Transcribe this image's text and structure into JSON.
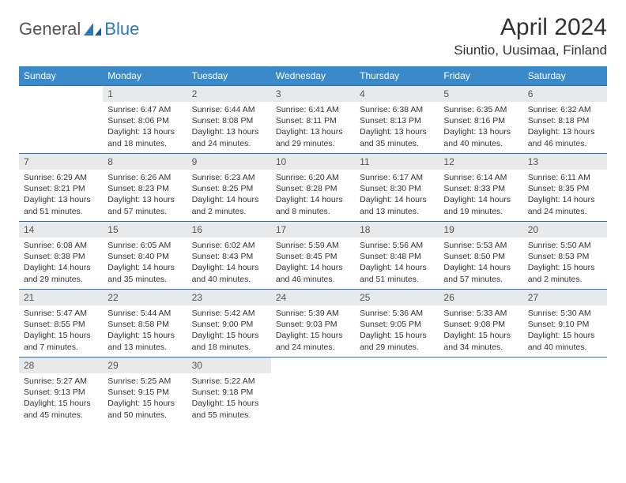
{
  "logo": {
    "text_general": "General",
    "text_blue": "Blue"
  },
  "title": "April 2024",
  "location": "Siuntio, Uusimaa, Finland",
  "colors": {
    "header_bg": "#3a8ac9",
    "header_fg": "#ffffff",
    "daynum_bg": "#e8e9ea",
    "border": "#2f6fa8",
    "logo_blue": "#2f77bb",
    "text": "#333333"
  },
  "weekdays": [
    "Sunday",
    "Monday",
    "Tuesday",
    "Wednesday",
    "Thursday",
    "Friday",
    "Saturday"
  ],
  "weeks": [
    [
      {
        "num": "",
        "sunrise": "",
        "sunset": "",
        "daylight": ""
      },
      {
        "num": "1",
        "sunrise": "Sunrise: 6:47 AM",
        "sunset": "Sunset: 8:06 PM",
        "daylight": "Daylight: 13 hours and 18 minutes."
      },
      {
        "num": "2",
        "sunrise": "Sunrise: 6:44 AM",
        "sunset": "Sunset: 8:08 PM",
        "daylight": "Daylight: 13 hours and 24 minutes."
      },
      {
        "num": "3",
        "sunrise": "Sunrise: 6:41 AM",
        "sunset": "Sunset: 8:11 PM",
        "daylight": "Daylight: 13 hours and 29 minutes."
      },
      {
        "num": "4",
        "sunrise": "Sunrise: 6:38 AM",
        "sunset": "Sunset: 8:13 PM",
        "daylight": "Daylight: 13 hours and 35 minutes."
      },
      {
        "num": "5",
        "sunrise": "Sunrise: 6:35 AM",
        "sunset": "Sunset: 8:16 PM",
        "daylight": "Daylight: 13 hours and 40 minutes."
      },
      {
        "num": "6",
        "sunrise": "Sunrise: 6:32 AM",
        "sunset": "Sunset: 8:18 PM",
        "daylight": "Daylight: 13 hours and 46 minutes."
      }
    ],
    [
      {
        "num": "7",
        "sunrise": "Sunrise: 6:29 AM",
        "sunset": "Sunset: 8:21 PM",
        "daylight": "Daylight: 13 hours and 51 minutes."
      },
      {
        "num": "8",
        "sunrise": "Sunrise: 6:26 AM",
        "sunset": "Sunset: 8:23 PM",
        "daylight": "Daylight: 13 hours and 57 minutes."
      },
      {
        "num": "9",
        "sunrise": "Sunrise: 6:23 AM",
        "sunset": "Sunset: 8:25 PM",
        "daylight": "Daylight: 14 hours and 2 minutes."
      },
      {
        "num": "10",
        "sunrise": "Sunrise: 6:20 AM",
        "sunset": "Sunset: 8:28 PM",
        "daylight": "Daylight: 14 hours and 8 minutes."
      },
      {
        "num": "11",
        "sunrise": "Sunrise: 6:17 AM",
        "sunset": "Sunset: 8:30 PM",
        "daylight": "Daylight: 14 hours and 13 minutes."
      },
      {
        "num": "12",
        "sunrise": "Sunrise: 6:14 AM",
        "sunset": "Sunset: 8:33 PM",
        "daylight": "Daylight: 14 hours and 19 minutes."
      },
      {
        "num": "13",
        "sunrise": "Sunrise: 6:11 AM",
        "sunset": "Sunset: 8:35 PM",
        "daylight": "Daylight: 14 hours and 24 minutes."
      }
    ],
    [
      {
        "num": "14",
        "sunrise": "Sunrise: 6:08 AM",
        "sunset": "Sunset: 8:38 PM",
        "daylight": "Daylight: 14 hours and 29 minutes."
      },
      {
        "num": "15",
        "sunrise": "Sunrise: 6:05 AM",
        "sunset": "Sunset: 8:40 PM",
        "daylight": "Daylight: 14 hours and 35 minutes."
      },
      {
        "num": "16",
        "sunrise": "Sunrise: 6:02 AM",
        "sunset": "Sunset: 8:43 PM",
        "daylight": "Daylight: 14 hours and 40 minutes."
      },
      {
        "num": "17",
        "sunrise": "Sunrise: 5:59 AM",
        "sunset": "Sunset: 8:45 PM",
        "daylight": "Daylight: 14 hours and 46 minutes."
      },
      {
        "num": "18",
        "sunrise": "Sunrise: 5:56 AM",
        "sunset": "Sunset: 8:48 PM",
        "daylight": "Daylight: 14 hours and 51 minutes."
      },
      {
        "num": "19",
        "sunrise": "Sunrise: 5:53 AM",
        "sunset": "Sunset: 8:50 PM",
        "daylight": "Daylight: 14 hours and 57 minutes."
      },
      {
        "num": "20",
        "sunrise": "Sunrise: 5:50 AM",
        "sunset": "Sunset: 8:53 PM",
        "daylight": "Daylight: 15 hours and 2 minutes."
      }
    ],
    [
      {
        "num": "21",
        "sunrise": "Sunrise: 5:47 AM",
        "sunset": "Sunset: 8:55 PM",
        "daylight": "Daylight: 15 hours and 7 minutes."
      },
      {
        "num": "22",
        "sunrise": "Sunrise: 5:44 AM",
        "sunset": "Sunset: 8:58 PM",
        "daylight": "Daylight: 15 hours and 13 minutes."
      },
      {
        "num": "23",
        "sunrise": "Sunrise: 5:42 AM",
        "sunset": "Sunset: 9:00 PM",
        "daylight": "Daylight: 15 hours and 18 minutes."
      },
      {
        "num": "24",
        "sunrise": "Sunrise: 5:39 AM",
        "sunset": "Sunset: 9:03 PM",
        "daylight": "Daylight: 15 hours and 24 minutes."
      },
      {
        "num": "25",
        "sunrise": "Sunrise: 5:36 AM",
        "sunset": "Sunset: 9:05 PM",
        "daylight": "Daylight: 15 hours and 29 minutes."
      },
      {
        "num": "26",
        "sunrise": "Sunrise: 5:33 AM",
        "sunset": "Sunset: 9:08 PM",
        "daylight": "Daylight: 15 hours and 34 minutes."
      },
      {
        "num": "27",
        "sunrise": "Sunrise: 5:30 AM",
        "sunset": "Sunset: 9:10 PM",
        "daylight": "Daylight: 15 hours and 40 minutes."
      }
    ],
    [
      {
        "num": "28",
        "sunrise": "Sunrise: 5:27 AM",
        "sunset": "Sunset: 9:13 PM",
        "daylight": "Daylight: 15 hours and 45 minutes."
      },
      {
        "num": "29",
        "sunrise": "Sunrise: 5:25 AM",
        "sunset": "Sunset: 9:15 PM",
        "daylight": "Daylight: 15 hours and 50 minutes."
      },
      {
        "num": "30",
        "sunrise": "Sunrise: 5:22 AM",
        "sunset": "Sunset: 9:18 PM",
        "daylight": "Daylight: 15 hours and 55 minutes."
      },
      {
        "num": "",
        "sunrise": "",
        "sunset": "",
        "daylight": ""
      },
      {
        "num": "",
        "sunrise": "",
        "sunset": "",
        "daylight": ""
      },
      {
        "num": "",
        "sunrise": "",
        "sunset": "",
        "daylight": ""
      },
      {
        "num": "",
        "sunrise": "",
        "sunset": "",
        "daylight": ""
      }
    ]
  ]
}
